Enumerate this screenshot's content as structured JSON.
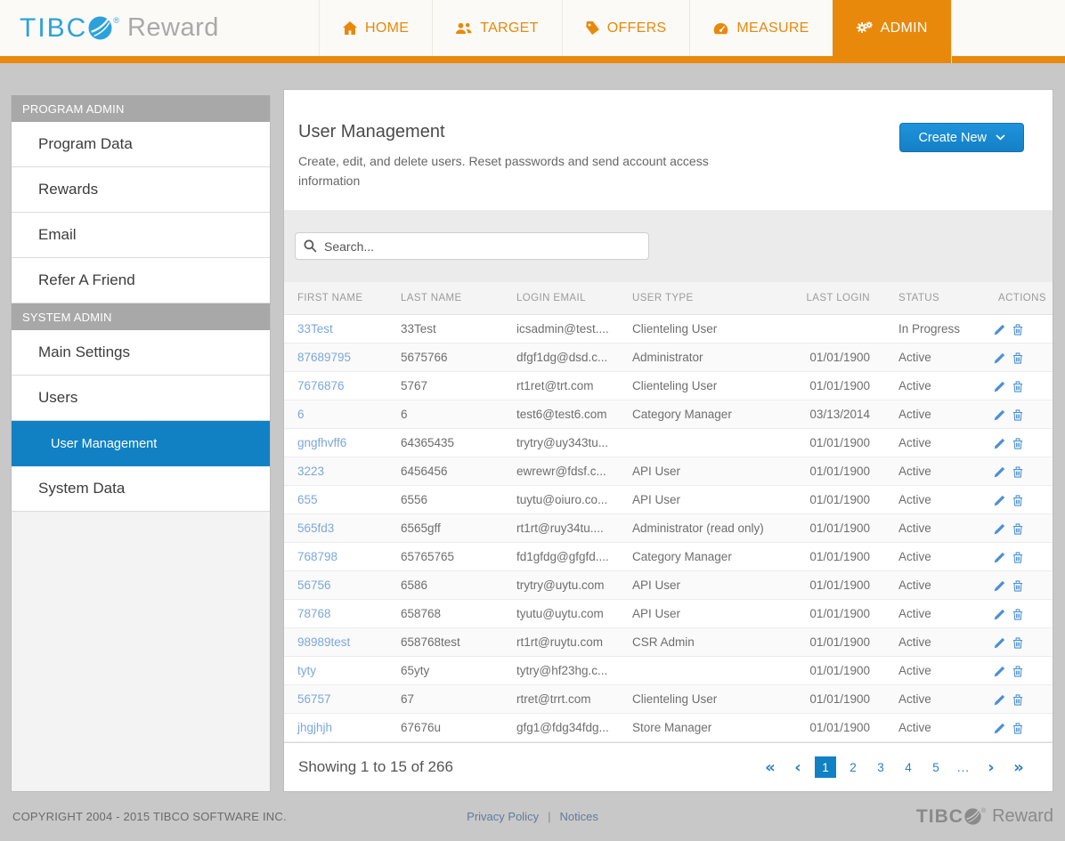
{
  "brand": {
    "tibc": "TIBC",
    "reward": "Reward",
    "reg": "®"
  },
  "nav": {
    "tabs": [
      {
        "label": "HOME",
        "icon": "home-icon",
        "active": false
      },
      {
        "label": "TARGET",
        "icon": "users-icon",
        "active": false
      },
      {
        "label": "OFFERS",
        "icon": "tag-icon",
        "active": false
      },
      {
        "label": "MEASURE",
        "icon": "gauge-icon",
        "active": false
      },
      {
        "label": "ADMIN",
        "icon": "gears-icon",
        "active": true
      }
    ]
  },
  "sidebar": {
    "sections": [
      {
        "title": "PROGRAM ADMIN",
        "items": [
          {
            "label": "Program Data"
          },
          {
            "label": "Rewards"
          },
          {
            "label": "Email"
          },
          {
            "label": "Refer A Friend"
          }
        ]
      },
      {
        "title": "SYSTEM ADMIN",
        "items": [
          {
            "label": "Main Settings"
          },
          {
            "label": "Users"
          },
          {
            "label": "User Management",
            "active": true,
            "sub": true
          },
          {
            "label": "System Data"
          }
        ]
      }
    ]
  },
  "main": {
    "title": "User Management",
    "subtitle": "Create, edit, and delete users. Reset passwords and send account access information",
    "create_button_label": "Create New",
    "search_placeholder": "Search...",
    "table": {
      "columns": [
        "FIRST NAME",
        "LAST NAME",
        "LOGIN EMAIL",
        "USER TYPE",
        "LAST LOGIN",
        "STATUS",
        "ACTIONS"
      ],
      "rows": [
        {
          "first_name": "33Test",
          "last_name": "33Test",
          "login_email": "icsadmin@test....",
          "user_type": "Clienteling User",
          "last_login": "",
          "status": "In Progress"
        },
        {
          "first_name": "87689795",
          "last_name": "5675766",
          "login_email": "dfgf1dg@dsd.c...",
          "user_type": "Administrator",
          "last_login": "01/01/1900",
          "status": "Active"
        },
        {
          "first_name": "7676876",
          "last_name": "5767",
          "login_email": "rt1ret@trt.com",
          "user_type": "Clienteling User",
          "last_login": "01/01/1900",
          "status": "Active"
        },
        {
          "first_name": "6",
          "last_name": "6",
          "login_email": "test6@test6.com",
          "user_type": "Category Manager",
          "last_login": "03/13/2014",
          "status": "Active"
        },
        {
          "first_name": "gngfhvff6",
          "last_name": "64365435",
          "login_email": "trytry@uy343tu...",
          "user_type": "",
          "last_login": "01/01/1900",
          "status": "Active"
        },
        {
          "first_name": "3223",
          "last_name": "6456456",
          "login_email": "ewrewr@fdsf.c...",
          "user_type": "API User",
          "last_login": "01/01/1900",
          "status": "Active"
        },
        {
          "first_name": "655",
          "last_name": "6556",
          "login_email": "tuytu@oiuro.co...",
          "user_type": "API User",
          "last_login": "01/01/1900",
          "status": "Active"
        },
        {
          "first_name": "565fd3",
          "last_name": "6565gff",
          "login_email": "rt1rt@ruy34tu....",
          "user_type": "Administrator (read only)",
          "last_login": "01/01/1900",
          "status": "Active"
        },
        {
          "first_name": "768798",
          "last_name": "65765765",
          "login_email": "fd1gfdg@gfgfd....",
          "user_type": "Category Manager",
          "last_login": "01/01/1900",
          "status": "Active"
        },
        {
          "first_name": "56756",
          "last_name": "6586",
          "login_email": "trytry@uytu.com",
          "user_type": "API User",
          "last_login": "01/01/1900",
          "status": "Active"
        },
        {
          "first_name": "78768",
          "last_name": "658768",
          "login_email": "tyutu@uytu.com",
          "user_type": "API User",
          "last_login": "01/01/1900",
          "status": "Active"
        },
        {
          "first_name": "98989test",
          "last_name": "658768test",
          "login_email": "rt1rt@ruytu.com",
          "user_type": "CSR Admin",
          "last_login": "01/01/1900",
          "status": "Active"
        },
        {
          "first_name": "tyty",
          "last_name": "65yty",
          "login_email": "tytry@hf23hg.c...",
          "user_type": "",
          "last_login": "01/01/1900",
          "status": "Active"
        },
        {
          "first_name": "56757",
          "last_name": "67",
          "login_email": "rtret@trrt.com",
          "user_type": "Clienteling User",
          "last_login": "01/01/1900",
          "status": "Active"
        },
        {
          "first_name": "jhgjhjh",
          "last_name": "67676u",
          "login_email": "gfg1@fdg34fdg...",
          "user_type": "Store Manager",
          "last_login": "01/01/1900",
          "status": "Active"
        }
      ]
    },
    "pagination": {
      "summary": "Showing 1 to 15 of 266",
      "controls": [
        {
          "type": "first",
          "glyph": "«"
        },
        {
          "type": "prev",
          "glyph": "‹"
        },
        {
          "type": "page",
          "label": "1",
          "active": true
        },
        {
          "type": "page",
          "label": "2"
        },
        {
          "type": "page",
          "label": "3"
        },
        {
          "type": "page",
          "label": "4"
        },
        {
          "type": "page",
          "label": "5"
        },
        {
          "type": "ellipsis",
          "glyph": "..."
        },
        {
          "type": "next",
          "glyph": "›"
        },
        {
          "type": "last",
          "glyph": "»"
        }
      ]
    }
  },
  "footer": {
    "copyright": "COPYRIGHT 2004 - 2015 TIBCO SOFTWARE INC.",
    "links": [
      {
        "label": "Privacy Policy"
      },
      {
        "label": "Notices"
      }
    ]
  },
  "colors": {
    "accent_orange": "#E8890C",
    "accent_blue": "#1181C4",
    "link_blue": "#7CA7DB",
    "pager_blue": "#2E7EC1",
    "action_icon_blue": "#4A90D2"
  }
}
